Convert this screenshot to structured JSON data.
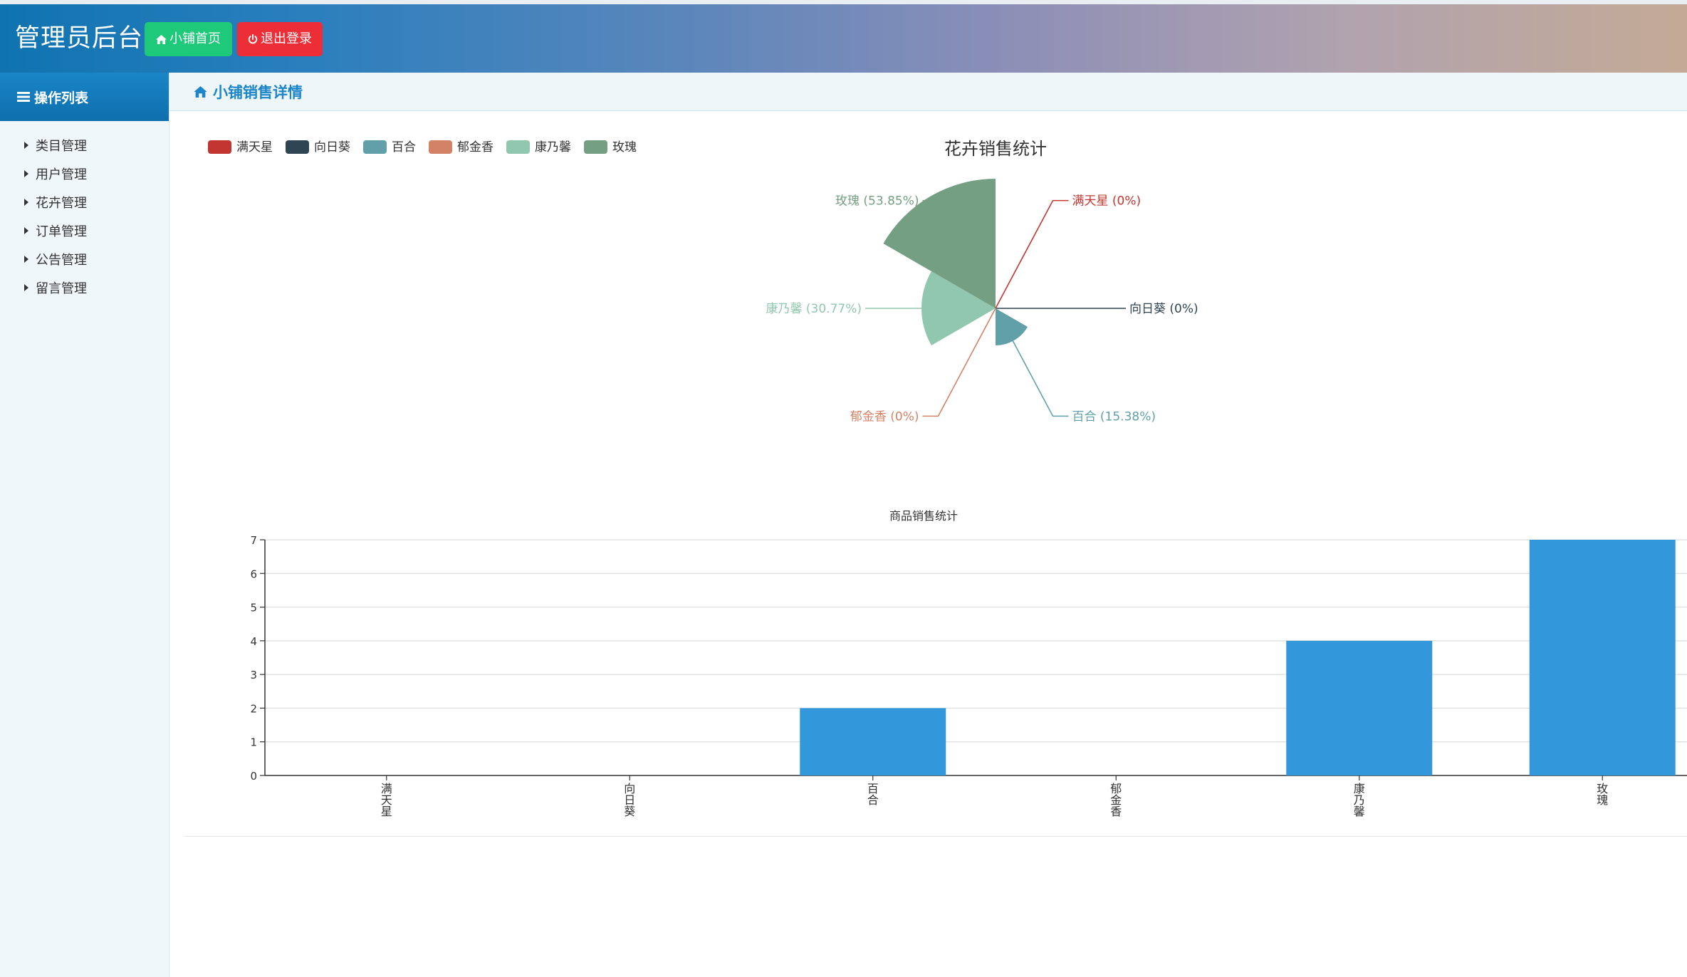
{
  "header": {
    "title": "管理员后台",
    "home_button": "小铺首页",
    "logout_button": "退出登录"
  },
  "sidebar": {
    "title": "操作列表",
    "items": [
      {
        "label": "类目管理"
      },
      {
        "label": "用户管理"
      },
      {
        "label": "花卉管理"
      },
      {
        "label": "订单管理"
      },
      {
        "label": "公告管理"
      },
      {
        "label": "留言管理"
      }
    ]
  },
  "main": {
    "title": "小铺销售详情"
  },
  "chart_data": [
    {
      "type": "pie",
      "variant": "rose",
      "title": "花卉销售统计",
      "legend_position": "top-left",
      "slices": [
        {
          "name": "满天星",
          "value": 0,
          "percent": "0%",
          "color": "#c23531"
        },
        {
          "name": "向日葵",
          "value": 0,
          "percent": "0%",
          "color": "#2f4554"
        },
        {
          "name": "百合",
          "value": 2,
          "percent": "15.38%",
          "color": "#61a0a8"
        },
        {
          "name": "郁金香",
          "value": 0,
          "percent": "0%",
          "color": "#d48265"
        },
        {
          "name": "康乃馨",
          "value": 4,
          "percent": "30.77%",
          "color": "#91c7ae"
        },
        {
          "name": "玫瑰",
          "value": 7,
          "percent": "53.85%",
          "color": "#749f83"
        }
      ]
    },
    {
      "type": "bar",
      "title": "商品销售统计",
      "categories": [
        "满天星",
        "向日葵",
        "百合",
        "郁金香",
        "康乃馨",
        "玫瑰"
      ],
      "values": [
        0,
        0,
        2,
        0,
        4,
        7
      ],
      "ylim": [
        0,
        7
      ],
      "yticks": [
        0,
        1,
        2,
        3,
        4,
        5,
        6,
        7
      ],
      "grid": true,
      "bar_color": "#3398db"
    }
  ]
}
